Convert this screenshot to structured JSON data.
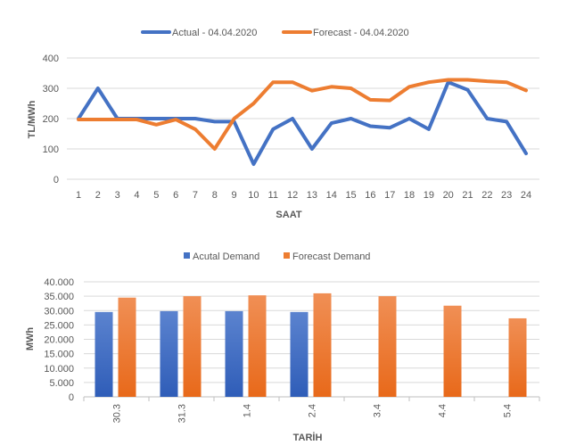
{
  "chart_data": [
    {
      "type": "line",
      "title": "",
      "xlabel": "SAAT",
      "ylabel": "TL/MWh",
      "ylim": [
        0,
        400
      ],
      "yticks": [
        0,
        100,
        200,
        300,
        400
      ],
      "x": [
        1,
        2,
        3,
        4,
        5,
        6,
        7,
        8,
        9,
        10,
        11,
        12,
        13,
        14,
        15,
        16,
        17,
        18,
        19,
        20,
        21,
        22,
        23,
        24
      ],
      "grid": true,
      "legend": "top",
      "series": [
        {
          "name": "Actual - 04.04.2020",
          "color": "#4472C4",
          "values": [
            200,
            300,
            200,
            200,
            200,
            200,
            200,
            190,
            190,
            50,
            165,
            200,
            100,
            185,
            200,
            175,
            170,
            200,
            165,
            320,
            295,
            200,
            190,
            85
          ]
        },
        {
          "name": "Forecast - 04.04.2020",
          "color": "#ED7D31",
          "values": [
            197,
            197,
            197,
            197,
            180,
            197,
            165,
            100,
            200,
            250,
            320,
            320,
            292,
            305,
            300,
            262,
            260,
            305,
            320,
            328,
            328,
            323,
            320,
            293
          ]
        }
      ]
    },
    {
      "type": "bar",
      "title": "",
      "xlabel": "TARİH",
      "ylabel": "MWh",
      "ylim": [
        0,
        40000
      ],
      "yticks": [
        "0",
        "5.000",
        "10.000",
        "15.000",
        "20.000",
        "25.000",
        "30.000",
        "35.000",
        "40.000"
      ],
      "categories": [
        "30.3",
        "31.3",
        "1.4",
        "2.4",
        "3.4",
        "4.4",
        "5.4"
      ],
      "grid": true,
      "legend": "top",
      "series": [
        {
          "name": "Acutal Demand",
          "color": "#4472C4",
          "values": [
            29500,
            29800,
            29800,
            29500,
            null,
            null,
            null
          ]
        },
        {
          "name": "Forecast Demand",
          "color": "#ED7D31",
          "values": [
            34500,
            35000,
            35300,
            36000,
            35000,
            31700,
            27300
          ]
        }
      ]
    }
  ]
}
